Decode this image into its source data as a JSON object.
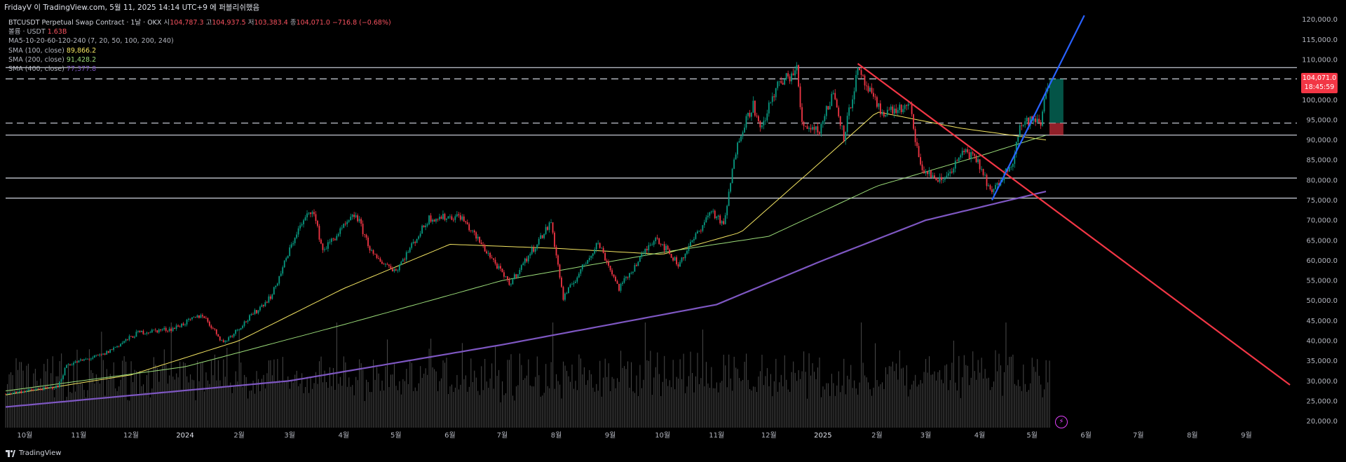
{
  "header": {
    "published": "FridayV 이 TradingView.com, 5월 11, 2025 14:14 UTC+9 에 퍼블리쉬했음"
  },
  "legend": {
    "symbol": "BTCUSDT Perpetual Swap Contract · 1날 · OKX",
    "ohlc": [
      {
        "label": "시",
        "value": "104,787.3"
      },
      {
        "label": "고",
        "value": "104,937.5"
      },
      {
        "label": "저",
        "value": "103,383.4"
      },
      {
        "label": "종",
        "value": "104,071.0"
      }
    ],
    "change": "−716.8 (−0.68%)",
    "volume_label": "볼륨 · USDT",
    "volume_value": "1.63B",
    "ma_ribbon": "MA5-10-20-60-120-240 (7, 20, 50, 100, 200, 240)",
    "sma": [
      {
        "label": "SMA (100, close)",
        "value": "89,866.2",
        "color": "#f5e663"
      },
      {
        "label": "SMA (200, close)",
        "value": "91,428.2",
        "color": "#9bdc79"
      },
      {
        "label": "SMA (400, close)",
        "value": "77,377.8",
        "color": "#7e57c2"
      }
    ]
  },
  "price_tag": {
    "price": "104,071.0",
    "countdown": "18:45:59"
  },
  "footer": {
    "brand": "TradingView"
  },
  "colors": {
    "up": "#089981",
    "down": "#f23645",
    "sma100": "#f5e663",
    "sma200": "#9bdc79",
    "sma400": "#7e57c2",
    "trend_down": "#f23645",
    "trend_up": "#2962ff",
    "hline": "#b2b5be"
  },
  "chart_data": {
    "type": "candlestick",
    "y_ticks": [
      "120,000.0",
      "115,000.0",
      "110,000.0",
      "105,000.0",
      "100,000.0",
      "95,000.0",
      "90,000.0",
      "85,000.0",
      "80,000.0",
      "75,000.0",
      "70,000.0",
      "65,000.0",
      "60,000.0",
      "55,000.0",
      "50,000.0",
      "45,000.0",
      "40,000.0",
      "35,000.0",
      "30,000.0",
      "25,000.0",
      "20,000.0"
    ],
    "x_ticks": [
      "10월",
      "11월",
      "12월",
      "2024",
      "2월",
      "3월",
      "4월",
      "5월",
      "6월",
      "7월",
      "8월",
      "9월",
      "10월",
      "11월",
      "12월",
      "2025",
      "2월",
      "3월",
      "4월",
      "5월",
      "6월",
      "7월",
      "8월",
      "9월"
    ],
    "x_tick_dates": [
      "2023-10-01",
      "2023-11-01",
      "2023-12-01",
      "2024-01-01",
      "2024-02-01",
      "2024-03-01",
      "2024-04-01",
      "2024-05-01",
      "2024-06-01",
      "2024-07-01",
      "2024-08-01",
      "2024-09-01",
      "2024-10-01",
      "2024-11-01",
      "2024-12-01",
      "2025-01-01",
      "2025-02-01",
      "2025-03-01",
      "2025-04-01",
      "2025-05-01",
      "2025-06-01",
      "2025-07-01",
      "2025-08-01",
      "2025-09-01"
    ],
    "ylim": [
      18000,
      121000
    ],
    "date_range": [
      "2023-09-20",
      "2025-09-30"
    ],
    "price_path": [
      [
        "2023-09-20",
        26800
      ],
      [
        "2023-10-01",
        27500
      ],
      [
        "2023-10-20",
        28500
      ],
      [
        "2023-10-25",
        34000
      ],
      [
        "2023-11-15",
        36500
      ],
      [
        "2023-12-05",
        42000
      ],
      [
        "2023-12-25",
        43000
      ],
      [
        "2024-01-11",
        46500
      ],
      [
        "2024-01-23",
        39500
      ],
      [
        "2024-02-10",
        47000
      ],
      [
        "2024-02-20",
        51500
      ],
      [
        "2024-03-05",
        67000
      ],
      [
        "2024-03-14",
        73000
      ],
      [
        "2024-03-20",
        62500
      ],
      [
        "2024-04-08",
        71500
      ],
      [
        "2024-04-18",
        61000
      ],
      [
        "2024-05-01",
        57500
      ],
      [
        "2024-05-20",
        70500
      ],
      [
        "2024-06-07",
        71000
      ],
      [
        "2024-06-25",
        60500
      ],
      [
        "2024-07-05",
        54000
      ],
      [
        "2024-07-29",
        69500
      ],
      [
        "2024-08-05",
        50500
      ],
      [
        "2024-08-25",
        64500
      ],
      [
        "2024-09-06",
        53000
      ],
      [
        "2024-09-27",
        66000
      ],
      [
        "2024-10-10",
        59000
      ],
      [
        "2024-10-29",
        72500
      ],
      [
        "2024-11-05",
        68500
      ],
      [
        "2024-11-13",
        90000
      ],
      [
        "2024-11-22",
        99000
      ],
      [
        "2024-11-26",
        92000
      ],
      [
        "2024-12-05",
        103000
      ],
      [
        "2024-12-17",
        107500
      ],
      [
        "2024-12-20",
        94000
      ],
      [
        "2024-12-30",
        92500
      ],
      [
        "2025-01-07",
        102000
      ],
      [
        "2025-01-13",
        91000
      ],
      [
        "2025-01-21",
        107000
      ],
      [
        "2025-02-03",
        97000
      ],
      [
        "2025-02-20",
        98000
      ],
      [
        "2025-02-26",
        83000
      ],
      [
        "2025-03-10",
        79500
      ],
      [
        "2025-03-24",
        87500
      ],
      [
        "2025-04-01",
        83500
      ],
      [
        "2025-04-08",
        76500
      ],
      [
        "2025-04-20",
        85000
      ],
      [
        "2025-04-24",
        93500
      ],
      [
        "2025-05-01",
        95000
      ],
      [
        "2025-05-06",
        94000
      ],
      [
        "2025-05-09",
        103000
      ],
      [
        "2025-05-11",
        104071
      ]
    ],
    "sma100_path": [
      [
        "2023-09-20",
        26500
      ],
      [
        "2023-12-01",
        31500
      ],
      [
        "2024-02-01",
        40000
      ],
      [
        "2024-04-01",
        53000
      ],
      [
        "2024-06-01",
        64000
      ],
      [
        "2024-08-01",
        63000
      ],
      [
        "2024-10-01",
        61500
      ],
      [
        "2024-11-15",
        67000
      ],
      [
        "2025-01-01",
        85000
      ],
      [
        "2025-02-01",
        97000
      ],
      [
        "2025-03-20",
        93000
      ],
      [
        "2025-05-11",
        89866
      ]
    ],
    "sma200_path": [
      [
        "2023-09-20",
        27500
      ],
      [
        "2024-01-01",
        33500
      ],
      [
        "2024-04-01",
        44000
      ],
      [
        "2024-07-01",
        55000
      ],
      [
        "2024-10-01",
        62000
      ],
      [
        "2024-12-01",
        66000
      ],
      [
        "2025-02-01",
        78500
      ],
      [
        "2025-04-01",
        86000
      ],
      [
        "2025-05-11",
        91428
      ]
    ],
    "sma400_path": [
      [
        "2023-09-20",
        23500
      ],
      [
        "2024-03-01",
        30000
      ],
      [
        "2024-07-01",
        39000
      ],
      [
        "2024-11-01",
        49000
      ],
      [
        "2025-01-01",
        60000
      ],
      [
        "2025-03-01",
        70000
      ],
      [
        "2025-05-11",
        77378
      ]
    ],
    "horizontal_levels": [
      {
        "price": 108000,
        "style": "solid"
      },
      {
        "price": 105200,
        "style": "dashed"
      },
      {
        "price": 94200,
        "style": "dashed"
      },
      {
        "price": 91200,
        "style": "solid"
      },
      {
        "price": 80500,
        "style": "solid"
      },
      {
        "price": 75500,
        "style": "solid"
      }
    ],
    "trendlines": [
      {
        "name": "down",
        "from": [
          "2025-01-21",
          109000
        ],
        "to": [
          "2025-09-26",
          29000
        ]
      },
      {
        "name": "up",
        "from": [
          "2025-04-08",
          75000
        ],
        "to": [
          "2025-05-31",
          121000
        ]
      }
    ],
    "position": {
      "start": "2025-05-11",
      "end": "2025-05-19",
      "entry": 94200,
      "target": 105200,
      "stop": 91200
    },
    "volume_max_usdt": 4.5,
    "volume_label": "USDT (B)"
  }
}
